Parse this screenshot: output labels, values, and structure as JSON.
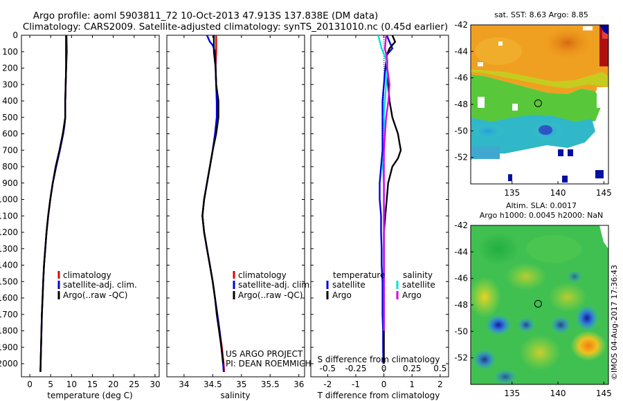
{
  "header": {
    "title_line1": "Argo profile: aoml 5903811_72 10-Oct-2013 47.913S 137.838E (DM data)",
    "title_line2": "Climatology: CARS2009. Satellite-adjusted climatology: synTS_20131010.nc (0.45d earlier)"
  },
  "colors": {
    "climatology": "#e00000",
    "satellite": "#0000e0",
    "argo": "#000000",
    "sal_satellite": "#00e0e0",
    "sal_argo": "#e000e0"
  },
  "panel_labels": {
    "sst_title": "sat. SST: 8.63 Argo: 8.85",
    "sla_title1": "Altim. SLA: 0.0017",
    "sla_title2": "Argo h1000: 0.0045 h2000: NaN",
    "project": "US ARGO PROJECT",
    "pi": "PI: DEAN ROEMMICH",
    "stamp": "©IMOS 04-Aug-2017 17:36:43"
  },
  "chart_data": [
    {
      "type": "line",
      "title": "temperature profile",
      "xlabel": "temperature (deg C)",
      "ylabel": "",
      "xlim": [
        -2,
        31
      ],
      "ylim": [
        2080,
        0
      ],
      "xticks": [
        "0",
        "5",
        "10",
        "15",
        "20",
        "25",
        "30"
      ],
      "xtick_values": [
        0,
        5,
        10,
        15,
        20,
        25,
        30
      ],
      "yticks": [
        "0",
        "100",
        "200",
        "300",
        "400",
        "500",
        "600",
        "700",
        "800",
        "900",
        "1000",
        "1100",
        "1200",
        "1300",
        "1400",
        "1500",
        "1600",
        "1700",
        "1800",
        "1900",
        "2000"
      ],
      "ytick_values": [
        0,
        100,
        200,
        300,
        400,
        500,
        600,
        700,
        800,
        900,
        1000,
        1100,
        1200,
        1300,
        1400,
        1500,
        1600,
        1700,
        1800,
        1900,
        2000
      ],
      "legend": [
        "climatology",
        "satellite-adj. clim.",
        "Argo(..raw -QC)"
      ],
      "series": [
        {
          "name": "climatology",
          "depth": [
            0,
            100,
            200,
            300,
            400,
            500,
            550,
            600,
            650,
            700,
            800,
            900,
            1000,
            1100,
            1200,
            1300,
            1400,
            1500,
            1600,
            1700,
            1800,
            1900,
            2000,
            2050
          ],
          "values": [
            8.8,
            8.9,
            8.7,
            8.6,
            8.5,
            8.5,
            8.3,
            8.0,
            7.6,
            7.2,
            6.3,
            5.5,
            4.9,
            4.4,
            4.0,
            3.7,
            3.4,
            3.2,
            3.05,
            2.9,
            2.8,
            2.7,
            2.6,
            2.55
          ]
        },
        {
          "name": "satellite-adj. clim.",
          "depth": [
            0,
            100,
            200,
            300,
            400,
            500,
            550,
            600,
            650,
            700,
            800,
            900,
            1000,
            1100,
            1200,
            1300,
            1400,
            1500,
            1600,
            1700,
            1800,
            1900,
            2000,
            2050
          ],
          "values": [
            8.7,
            8.7,
            8.7,
            8.6,
            8.5,
            8.5,
            8.3,
            8.0,
            7.6,
            7.2,
            6.3,
            5.5,
            4.9,
            4.4,
            4.0,
            3.7,
            3.4,
            3.2,
            3.05,
            2.9,
            2.8,
            2.7,
            2.6,
            2.55
          ]
        },
        {
          "name": "Argo(..raw -QC)",
          "depth": [
            0,
            100,
            200,
            300,
            400,
            500,
            550,
            600,
            650,
            700,
            800,
            900,
            1000,
            1100,
            1200,
            1300,
            1400,
            1500,
            1600,
            1700,
            1800,
            1900,
            2000,
            2050
          ],
          "values": [
            8.7,
            8.7,
            8.7,
            8.6,
            8.5,
            8.5,
            8.2,
            7.9,
            7.5,
            7.1,
            6.2,
            5.5,
            4.9,
            4.4,
            4.0,
            3.7,
            3.4,
            3.2,
            3.05,
            2.9,
            2.8,
            2.7,
            2.6,
            2.55
          ]
        }
      ]
    },
    {
      "type": "line",
      "title": "salinity profile",
      "xlabel": "salinity",
      "xlim": [
        33.7,
        36.1
      ],
      "ylim": [
        2080,
        0
      ],
      "xticks": [
        "34",
        "34.5",
        "35",
        "35.5",
        "36"
      ],
      "xtick_values": [
        34,
        34.5,
        35,
        35.5,
        36
      ],
      "legend": [
        "climatology",
        "satellite-adj. clim.",
        "Argo(..raw -QC)"
      ],
      "series": [
        {
          "name": "climatology",
          "depth": [
            0,
            100,
            200,
            300,
            400,
            500,
            600,
            700,
            800,
            900,
            1000,
            1100,
            1200,
            1300,
            1400,
            1500,
            1600,
            1700,
            1800,
            1900,
            2000,
            2050
          ],
          "values": [
            34.56,
            34.56,
            34.55,
            34.56,
            34.57,
            34.58,
            34.55,
            34.5,
            34.45,
            34.4,
            34.35,
            34.32,
            34.35,
            34.4,
            34.45,
            34.5,
            34.54,
            34.58,
            34.62,
            34.66,
            34.69,
            34.7
          ]
        },
        {
          "name": "satellite-adj. clim.",
          "depth": [
            0,
            40,
            60,
            100,
            200,
            300,
            400,
            500,
            600,
            700,
            800,
            900,
            1000,
            1100,
            1200,
            1300,
            1400,
            1500,
            1600,
            1700,
            1800,
            1900,
            2000,
            2050
          ],
          "values": [
            34.4,
            34.45,
            34.5,
            34.54,
            34.55,
            34.56,
            34.57,
            34.57,
            34.54,
            34.5,
            34.45,
            34.4,
            34.35,
            34.32,
            34.35,
            34.4,
            34.45,
            34.5,
            34.54,
            34.58,
            34.62,
            34.65,
            34.68,
            34.69
          ]
        },
        {
          "name": "Argo(..raw -QC)",
          "depth": [
            0,
            100,
            200,
            300,
            400,
            500,
            600,
            700,
            800,
            900,
            1000,
            1100,
            1200,
            1300,
            1400,
            1500,
            1600,
            1700,
            1800,
            1900,
            2000
          ],
          "values": [
            34.52,
            34.52,
            34.55,
            34.56,
            34.6,
            34.6,
            34.56,
            34.5,
            34.45,
            34.4,
            34.35,
            34.32,
            34.35,
            34.4,
            34.45,
            34.5,
            34.54,
            34.57,
            34.61,
            34.65,
            34.68
          ]
        }
      ]
    },
    {
      "type": "line",
      "title": "difference from climatology",
      "xlabel": "T difference from climatology",
      "xlabel2": "S difference from climatology",
      "xlim": [
        -2.6,
        2.3
      ],
      "ylim": [
        2080,
        0
      ],
      "xticks": [
        "-2",
        "-1",
        "0",
        "1",
        "2"
      ],
      "xtick_values": [
        -2,
        -1,
        0,
        1,
        2
      ],
      "sticks": [
        "-0.5",
        "-0.25",
        "0",
        "0.25",
        "0.5"
      ],
      "stick_values": [
        -0.5,
        -0.25,
        0,
        0.25,
        0.5
      ],
      "legend_temperature": "temperature",
      "legend_salinity": "salinity",
      "legend_entries": [
        "satellite",
        "Argo",
        "satellite",
        "Argo"
      ],
      "series": [
        {
          "name": "T satellite",
          "depth": [
            0,
            40,
            80,
            120,
            200,
            300,
            400,
            500,
            600,
            700,
            800,
            900,
            1000,
            1100,
            1200,
            1300,
            1400,
            1500,
            1600,
            1700,
            1800,
            1900,
            2000
          ],
          "values": [
            0.1,
            0.2,
            0.3,
            0.1,
            0.05,
            0.0,
            -0.05,
            -0.05,
            -0.05,
            -0.05,
            -0.1,
            -0.15,
            -0.15,
            -0.1,
            -0.1,
            -0.08,
            -0.08,
            -0.05,
            -0.05,
            -0.05,
            -0.03,
            -0.03,
            -0.02
          ]
        },
        {
          "name": "T Argo",
          "depth": [
            0,
            40,
            80,
            120,
            200,
            300,
            400,
            500,
            600,
            650,
            700,
            750,
            800,
            900,
            1000,
            1100,
            1200,
            1300,
            1400,
            1500,
            1600,
            1700,
            1800,
            1900,
            2000
          ],
          "values": [
            0.3,
            0.4,
            0.2,
            0.1,
            0.1,
            0.15,
            0.2,
            0.3,
            0.5,
            0.55,
            0.6,
            0.5,
            0.3,
            0.15,
            0.1,
            0.05,
            0.0,
            0.0,
            0.0,
            0.0,
            0.0,
            0.0,
            0.0,
            0.0,
            0.0
          ]
        },
        {
          "name": "S satellite",
          "depth": [
            0,
            30,
            80,
            150,
            200,
            300,
            400,
            500,
            600,
            700,
            800,
            900,
            1000,
            1100,
            1200,
            1300,
            1400,
            1500,
            1600,
            1700,
            1800
          ],
          "values": [
            -0.05,
            -0.04,
            -0.02,
            0.02,
            0.03,
            0.02,
            0.01,
            0.0,
            0.01,
            0.0,
            -0.01,
            0.0,
            0.0,
            0.0,
            0.0,
            0.0,
            0.0,
            0.0,
            0.0,
            0.0,
            0.0
          ]
        },
        {
          "name": "S Argo",
          "depth": [
            0,
            80,
            150,
            200,
            300,
            400,
            500,
            600,
            700,
            800,
            900,
            1000,
            1100,
            1200,
            1300,
            1400,
            1500,
            1600,
            1700,
            1800
          ],
          "values": [
            0.02,
            0.01,
            0.03,
            0.03,
            0.05,
            0.04,
            0.02,
            0.01,
            0.0,
            0.0,
            0.0,
            0.0,
            0.0,
            0.0,
            0.0,
            0.0,
            0.0,
            0.0,
            0.0,
            0.0
          ]
        }
      ]
    },
    {
      "type": "heatmap",
      "title": "sat. SST: 8.63 Argo: 8.85",
      "xlim": [
        130.5,
        145.5
      ],
      "ylim": [
        -54,
        -42
      ],
      "xticks": [
        "135",
        "140",
        "145"
      ],
      "xtick_values": [
        135,
        140,
        145
      ],
      "yticks": [
        "-42",
        "-44",
        "-46",
        "-48",
        "-50",
        "-52"
      ],
      "ytick_values": [
        -42,
        -44,
        -46,
        -48,
        -50,
        -52
      ],
      "marker": {
        "lon": 137.838,
        "lat": -47.913
      }
    },
    {
      "type": "heatmap",
      "title": "Altim. SLA: 0.0017",
      "xlim": [
        130.5,
        145.5
      ],
      "ylim": [
        -54,
        -42
      ],
      "xticks": [
        "135",
        "140",
        "145"
      ],
      "xtick_values": [
        135,
        140,
        145
      ],
      "yticks": [
        "-42",
        "-44",
        "-46",
        "-48",
        "-50",
        "-52"
      ],
      "ytick_values": [
        -42,
        -44,
        -46,
        -48,
        -50,
        -52
      ],
      "marker": {
        "lon": 137.838,
        "lat": -47.913
      }
    }
  ]
}
